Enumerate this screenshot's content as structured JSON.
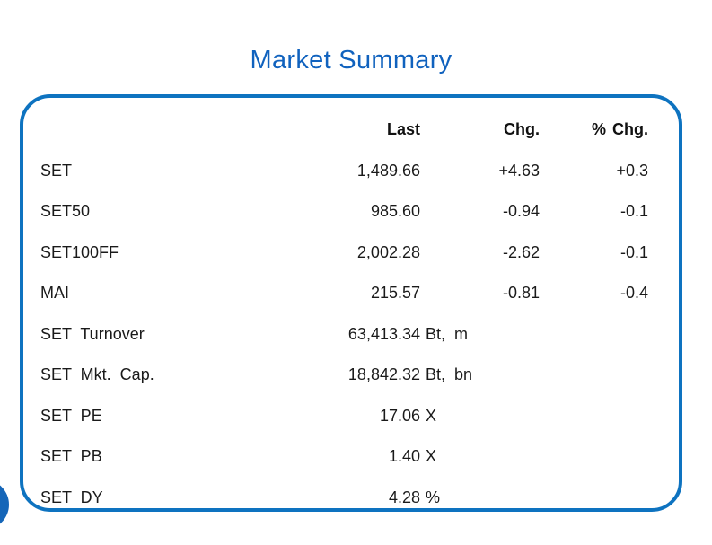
{
  "title": "Market Summary",
  "colors": {
    "title_blue": "#1062be",
    "card_border_blue": "#0e73c0",
    "corner_circle_blue": "#1566b8",
    "text": "#1a1a1a"
  },
  "chart_data": {
    "type": "table",
    "title": "Market Summary",
    "columns": [
      "",
      "Last",
      "Chg.",
      "% Chg."
    ],
    "rows": [
      [
        "SET",
        "1,489.66",
        "+4.63",
        "+0.3"
      ],
      [
        "SET50",
        "985.60",
        "-0.94",
        "-0.1"
      ],
      [
        "SET100FF",
        "2,002.28",
        "-2.62",
        "-0.1"
      ],
      [
        "MAI",
        "215.57",
        "-0.81",
        "-0.4"
      ],
      [
        "SET Turnover",
        "63,413.34 Bt, m",
        "",
        ""
      ],
      [
        "SET Mkt. Cap.",
        "18,842.32 Bt, bn",
        "",
        ""
      ],
      [
        "SET PE",
        "17.06 X",
        "",
        ""
      ],
      [
        "SET PB",
        "1.40 X",
        "",
        ""
      ],
      [
        "SET DY",
        "4.28 %",
        "",
        ""
      ]
    ]
  },
  "table": {
    "headers": {
      "last": "Last",
      "chg": "Chg.",
      "pct_chg": "% Chg."
    },
    "rows": [
      {
        "label": "SET",
        "last": "1,489.66",
        "unit": "",
        "chg": "+4.63",
        "pct_chg": "+0.3"
      },
      {
        "label": "SET50",
        "last": "985.60",
        "unit": "",
        "chg": "-0.94",
        "pct_chg": "-0.1"
      },
      {
        "label": "SET100FF",
        "last": "2,002.28",
        "unit": "",
        "chg": "-2.62",
        "pct_chg": "-0.1"
      },
      {
        "label": "MAI",
        "last": "215.57",
        "unit": "",
        "chg": "-0.81",
        "pct_chg": "-0.4"
      },
      {
        "label": "SET Turnover",
        "last": "63,413.34",
        "unit": "Bt, m",
        "chg": "",
        "pct_chg": ""
      },
      {
        "label": "SET Mkt. Cap.",
        "last": "18,842.32",
        "unit": "Bt, bn",
        "chg": "",
        "pct_chg": ""
      },
      {
        "label": "SET PE",
        "last": "17.06",
        "unit": "X",
        "chg": "",
        "pct_chg": ""
      },
      {
        "label": "SET PB",
        "last": "1.40",
        "unit": "X",
        "chg": "",
        "pct_chg": ""
      },
      {
        "label": "SET DY",
        "last": "4.28",
        "unit": "%",
        "chg": "",
        "pct_chg": ""
      }
    ]
  }
}
